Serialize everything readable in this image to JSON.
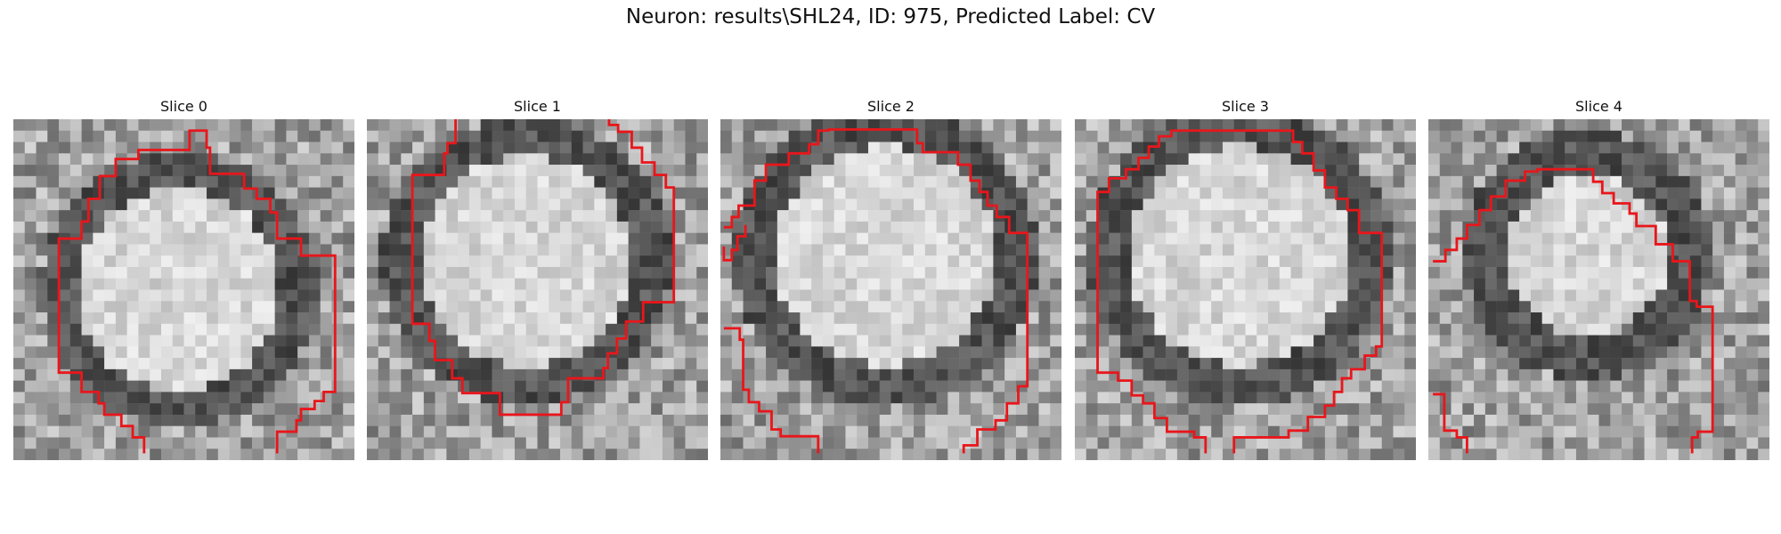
{
  "figure": {
    "title": "Neuron: results\\SHL24, ID: 975, Predicted Label: CV",
    "contour_color": "#e8161b"
  },
  "panels": [
    {
      "title": "Slice 0"
    },
    {
      "title": "Slice 1"
    },
    {
      "title": "Slice 2"
    },
    {
      "title": "Slice 3"
    },
    {
      "title": "Slice 4"
    }
  ]
}
